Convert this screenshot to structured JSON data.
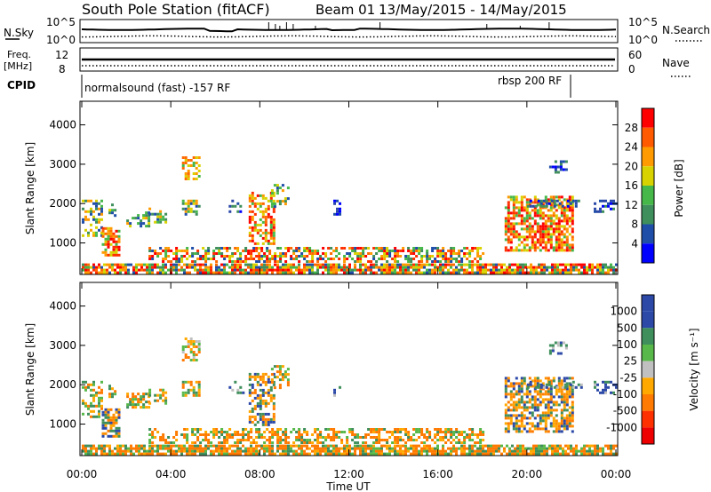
{
  "chart_data": [
    {
      "type": "line",
      "header": {
        "station": "South Pole Station (fitACF)",
        "beam": "Beam 01",
        "date_range": "13/May/2015 - 14/May/2015"
      },
      "left_label_top": "N.Sky",
      "right_label_top": "N.Search",
      "left_ticks": [
        "10^5",
        "10^0"
      ],
      "right_ticks": [
        "10^5",
        "10^0"
      ],
      "left_label_freq": [
        "Freq.",
        "[MHz]"
      ],
      "freq_ticks": [
        "12",
        "8"
      ],
      "right_label_nave": "Nave",
      "nave_ticks": [
        "60",
        "0"
      ],
      "cpid_label": "CPID",
      "cpid_segments": [
        {
          "label": "normalsound (fast) -157 RF",
          "start_hour": 0,
          "end_hour": 22.0
        },
        {
          "label": "rbsp 200 RF",
          "start_hour": 22.0,
          "end_hour": 24
        }
      ]
    },
    {
      "type": "heatmap",
      "name": "power",
      "ylabel": "Slant Range [km]",
      "y_ticks": [
        1000,
        2000,
        3000,
        4000
      ],
      "ylim": [
        200,
        4600
      ],
      "xlim_hours": [
        0,
        24
      ],
      "colorbar_label": "Power [dB]",
      "colorbar_ticks": [
        "4",
        "8",
        "12",
        "16",
        "20",
        "24",
        "28"
      ],
      "colors": [
        "#0000ff",
        "#1f4ea8",
        "#3f8f5c",
        "#46b84a",
        "#d8d200",
        "#ff9a00",
        "#ff5a00",
        "#ff0000"
      ]
    },
    {
      "type": "heatmap",
      "name": "velocity",
      "ylabel": "Slant Range [km]",
      "y_ticks": [
        1000,
        2000,
        3000,
        4000
      ],
      "ylim": [
        200,
        4600
      ],
      "xlim_hours": [
        0,
        24
      ],
      "colorbar_label": "Velocity [m s⁻¹]",
      "colorbar_ticks": [
        "1000",
        "500",
        "100",
        "25",
        "-25",
        "-100",
        "-500",
        "-1000"
      ],
      "colors": [
        "#2c49a8",
        "#3f8f5c",
        "#58b84a",
        "#c0c0c0",
        "#ffa800",
        "#ff7a00",
        "#ff3000",
        "#ee0000"
      ],
      "x_ticks": [
        "00:00",
        "04:00",
        "08:00",
        "12:00",
        "16:00",
        "20:00",
        "00:00"
      ],
      "xlabel": "Time UT"
    }
  ]
}
